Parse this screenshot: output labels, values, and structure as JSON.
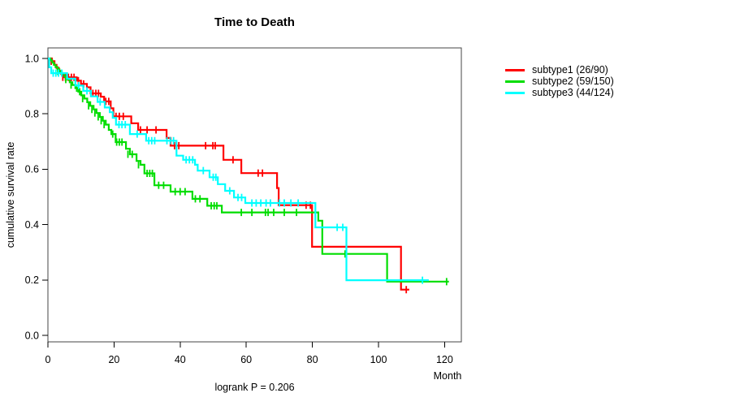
{
  "chart_data": {
    "type": "line",
    "subtype": "kaplan-meier-step",
    "title": "Time to Death",
    "xlabel": "Month",
    "ylabel": "cumulative survival rate",
    "footnote": "logrank P = 0.206",
    "x_ticks": [
      0,
      20,
      40,
      60,
      80,
      100,
      120
    ],
    "y_tick_labels": [
      "0.0",
      "0.2",
      "0.4",
      "0.6",
      "0.8",
      "1.0"
    ],
    "xlim": [
      0,
      125
    ],
    "ylim": [
      0,
      1.0
    ],
    "grid": false,
    "legend_position": "right",
    "series": [
      {
        "name": "subtype1",
        "label": "subtype1 (26/90)",
        "color": "#FF0000",
        "end": 109.3,
        "steps": [
          [
            0,
            1.0
          ],
          [
            1.2,
            0.99
          ],
          [
            2,
            0.977
          ],
          [
            2.6,
            0.966
          ],
          [
            3.3,
            0.955
          ],
          [
            4,
            0.944
          ],
          [
            4.6,
            0.932
          ],
          [
            8.7,
            0.92
          ],
          [
            10,
            0.908
          ],
          [
            11.8,
            0.896
          ],
          [
            12.9,
            0.874
          ],
          [
            16,
            0.862
          ],
          [
            17,
            0.845
          ],
          [
            19,
            0.82
          ],
          [
            19.8,
            0.791
          ],
          [
            25.2,
            0.766
          ],
          [
            27.3,
            0.742
          ],
          [
            35.9,
            0.713
          ],
          [
            37.1,
            0.685
          ],
          [
            53.1,
            0.634
          ],
          [
            58.5,
            0.586
          ],
          [
            69.3,
            0.532
          ],
          [
            69.8,
            0.47
          ],
          [
            79.9,
            0.32
          ],
          [
            106.8,
            0.165
          ]
        ],
        "censors": [
          [
            1,
            0.99
          ],
          [
            4.5,
            0.932
          ],
          [
            5.3,
            0.932
          ],
          [
            6.2,
            0.932
          ],
          [
            7.1,
            0.932
          ],
          [
            7.9,
            0.932
          ],
          [
            9.2,
            0.92
          ],
          [
            10.8,
            0.908
          ],
          [
            13.6,
            0.874
          ],
          [
            14.5,
            0.874
          ],
          [
            15.3,
            0.874
          ],
          [
            17.5,
            0.845
          ],
          [
            18.4,
            0.845
          ],
          [
            20.6,
            0.791
          ],
          [
            21.6,
            0.791
          ],
          [
            22.8,
            0.791
          ],
          [
            28,
            0.742
          ],
          [
            30,
            0.742
          ],
          [
            32.7,
            0.742
          ],
          [
            38.3,
            0.685
          ],
          [
            39.6,
            0.685
          ],
          [
            47.7,
            0.685
          ],
          [
            49.9,
            0.685
          ],
          [
            50.6,
            0.685
          ],
          [
            56,
            0.634
          ],
          [
            63.6,
            0.586
          ],
          [
            64.9,
            0.586
          ],
          [
            78.1,
            0.47
          ],
          [
            79.4,
            0.47
          ],
          [
            108.4,
            0.165
          ]
        ]
      },
      {
        "name": "subtype2",
        "label": "subtype2 (59/150)",
        "color": "#00DD00",
        "end": 121.3,
        "steps": [
          [
            0,
            1.0
          ],
          [
            0.8,
            0.993
          ],
          [
            1.3,
            0.985
          ],
          [
            1.8,
            0.977
          ],
          [
            2.3,
            0.969
          ],
          [
            2.9,
            0.961
          ],
          [
            3.5,
            0.953
          ],
          [
            4.2,
            0.944
          ],
          [
            5,
            0.934
          ],
          [
            5.8,
            0.924
          ],
          [
            6.6,
            0.914
          ],
          [
            7.4,
            0.904
          ],
          [
            8.3,
            0.893
          ],
          [
            9.2,
            0.88
          ],
          [
            10.1,
            0.867
          ],
          [
            11,
            0.855
          ],
          [
            11.9,
            0.842
          ],
          [
            12.8,
            0.829
          ],
          [
            13.8,
            0.816
          ],
          [
            14.7,
            0.803
          ],
          [
            15.7,
            0.789
          ],
          [
            16.6,
            0.775
          ],
          [
            17.5,
            0.761
          ],
          [
            18.4,
            0.742
          ],
          [
            19.2,
            0.727
          ],
          [
            20.5,
            0.698
          ],
          [
            23.6,
            0.674
          ],
          [
            24.8,
            0.654
          ],
          [
            26.8,
            0.63
          ],
          [
            28,
            0.616
          ],
          [
            29.2,
            0.585
          ],
          [
            32.2,
            0.542
          ],
          [
            37.1,
            0.519
          ],
          [
            43.7,
            0.493
          ],
          [
            48.2,
            0.468
          ],
          [
            52.6,
            0.444
          ],
          [
            81.8,
            0.414
          ],
          [
            83,
            0.294
          ],
          [
            102.6,
            0.194
          ]
        ],
        "censors": [
          [
            3,
            0.953
          ],
          [
            5.4,
            0.924
          ],
          [
            7,
            0.904
          ],
          [
            8.7,
            0.893
          ],
          [
            9.6,
            0.88
          ],
          [
            10.5,
            0.855
          ],
          [
            12.3,
            0.829
          ],
          [
            13.3,
            0.816
          ],
          [
            14.2,
            0.803
          ],
          [
            15.2,
            0.789
          ],
          [
            16.1,
            0.775
          ],
          [
            17,
            0.761
          ],
          [
            19.6,
            0.727
          ],
          [
            20.8,
            0.698
          ],
          [
            21.6,
            0.698
          ],
          [
            22.4,
            0.698
          ],
          [
            24.2,
            0.654
          ],
          [
            25.5,
            0.654
          ],
          [
            27.4,
            0.616
          ],
          [
            30,
            0.585
          ],
          [
            30.8,
            0.585
          ],
          [
            31.6,
            0.585
          ],
          [
            33.5,
            0.542
          ],
          [
            35,
            0.542
          ],
          [
            38.5,
            0.519
          ],
          [
            40,
            0.519
          ],
          [
            41.5,
            0.519
          ],
          [
            44.6,
            0.493
          ],
          [
            46,
            0.493
          ],
          [
            49.4,
            0.468
          ],
          [
            50.3,
            0.468
          ],
          [
            51.1,
            0.468
          ],
          [
            58.5,
            0.444
          ],
          [
            61.7,
            0.444
          ],
          [
            65.8,
            0.444
          ],
          [
            66.6,
            0.444
          ],
          [
            68.3,
            0.444
          ],
          [
            71.5,
            0.444
          ],
          [
            75.2,
            0.444
          ],
          [
            89.9,
            0.294
          ],
          [
            120.6,
            0.194
          ]
        ]
      },
      {
        "name": "subtype3",
        "label": "subtype3 (44/124)",
        "color": "#00FFFF",
        "end": 115.2,
        "steps": [
          [
            0,
            1.0
          ],
          [
            0.4,
            0.968
          ],
          [
            1,
            0.947
          ],
          [
            5.8,
            0.927
          ],
          [
            8.3,
            0.902
          ],
          [
            10.7,
            0.883
          ],
          [
            13,
            0.863
          ],
          [
            15,
            0.843
          ],
          [
            17.2,
            0.823
          ],
          [
            18.7,
            0.806
          ],
          [
            19.6,
            0.786
          ],
          [
            20.6,
            0.761
          ],
          [
            24.8,
            0.727
          ],
          [
            29.7,
            0.703
          ],
          [
            38.9,
            0.649
          ],
          [
            40.9,
            0.634
          ],
          [
            44.5,
            0.616
          ],
          [
            45.3,
            0.595
          ],
          [
            48.9,
            0.571
          ],
          [
            51.4,
            0.546
          ],
          [
            53.6,
            0.522
          ],
          [
            56.3,
            0.498
          ],
          [
            59.7,
            0.478
          ],
          [
            80.9,
            0.39
          ],
          [
            90.3,
            0.199
          ]
        ],
        "censors": [
          [
            1.6,
            0.947
          ],
          [
            2.4,
            0.947
          ],
          [
            3.2,
            0.947
          ],
          [
            4.2,
            0.947
          ],
          [
            9.3,
            0.902
          ],
          [
            11.8,
            0.883
          ],
          [
            15.8,
            0.843
          ],
          [
            21.5,
            0.761
          ],
          [
            22.4,
            0.761
          ],
          [
            23.4,
            0.761
          ],
          [
            27,
            0.727
          ],
          [
            30.5,
            0.703
          ],
          [
            31.4,
            0.703
          ],
          [
            32.3,
            0.703
          ],
          [
            36,
            0.703
          ],
          [
            37,
            0.703
          ],
          [
            38,
            0.703
          ],
          [
            41.8,
            0.634
          ],
          [
            42.8,
            0.634
          ],
          [
            43.8,
            0.634
          ],
          [
            47,
            0.595
          ],
          [
            50,
            0.571
          ],
          [
            50.8,
            0.571
          ],
          [
            55,
            0.522
          ],
          [
            57.5,
            0.498
          ],
          [
            58.6,
            0.498
          ],
          [
            61.7,
            0.478
          ],
          [
            63,
            0.478
          ],
          [
            64.4,
            0.478
          ],
          [
            66,
            0.478
          ],
          [
            67.3,
            0.478
          ],
          [
            70,
            0.478
          ],
          [
            71.5,
            0.478
          ],
          [
            73.5,
            0.478
          ],
          [
            75.7,
            0.478
          ],
          [
            87.5,
            0.39
          ],
          [
            89.2,
            0.39
          ],
          [
            113.3,
            0.199
          ]
        ]
      }
    ]
  }
}
